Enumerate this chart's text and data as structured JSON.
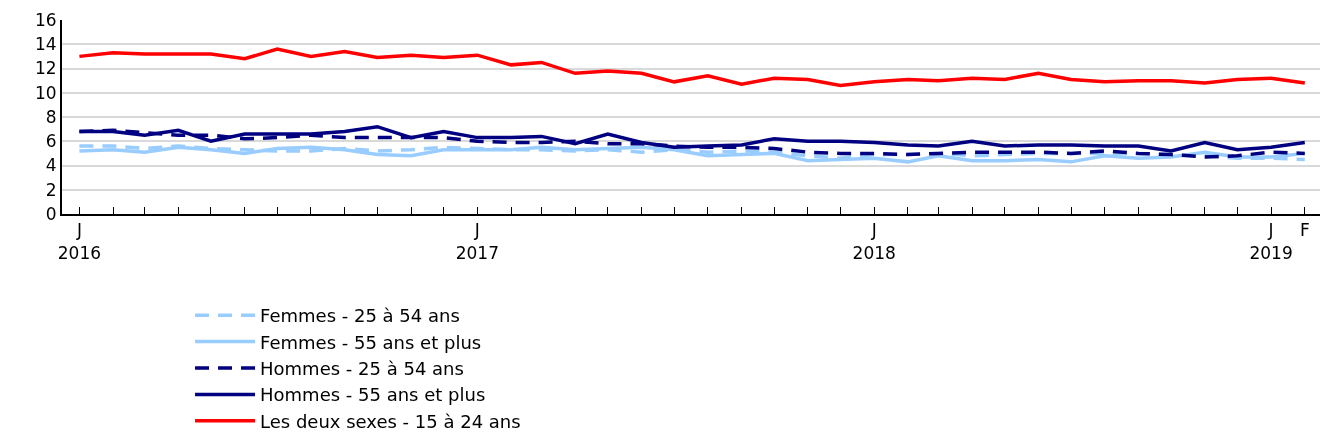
{
  "chart_data": {
    "type": "line",
    "x": [
      "2016-01",
      "2016-02",
      "2016-03",
      "2016-04",
      "2016-05",
      "2016-06",
      "2016-07",
      "2016-08",
      "2016-09",
      "2016-10",
      "2016-11",
      "2016-12",
      "2017-01",
      "2017-02",
      "2017-03",
      "2017-04",
      "2017-05",
      "2017-06",
      "2017-07",
      "2017-08",
      "2017-09",
      "2017-10",
      "2017-11",
      "2017-12",
      "2018-01",
      "2018-02",
      "2018-03",
      "2018-04",
      "2018-05",
      "2018-06",
      "2018-07",
      "2018-08",
      "2018-09",
      "2018-10",
      "2018-11",
      "2018-12",
      "2019-01",
      "2019-02"
    ],
    "series": [
      {
        "name": "Femmes - 25 à 54 ans",
        "color": "#99ccff",
        "line_style": "dashed",
        "values": [
          5.6,
          5.6,
          5.4,
          5.6,
          5.4,
          5.3,
          5.2,
          5.2,
          5.4,
          5.2,
          5.3,
          5.5,
          5.4,
          5.3,
          5.3,
          5.2,
          5.3,
          5.1,
          5.3,
          5.1,
          5.2,
          5.1,
          4.8,
          4.6,
          4.9,
          4.9,
          5.0,
          4.8,
          4.9,
          5.0,
          5.0,
          5.0,
          5.0,
          4.9,
          4.8,
          4.6,
          4.6,
          4.5
        ]
      },
      {
        "name": "Femmes - 55 ans et plus",
        "color": "#99ccff",
        "line_style": "solid",
        "values": [
          5.2,
          5.3,
          5.1,
          5.5,
          5.3,
          5.0,
          5.4,
          5.5,
          5.3,
          4.9,
          4.8,
          5.3,
          5.3,
          5.3,
          5.5,
          5.3,
          5.4,
          5.5,
          5.3,
          4.8,
          4.9,
          5.0,
          4.4,
          4.5,
          4.6,
          4.3,
          4.8,
          4.4,
          4.4,
          4.5,
          4.3,
          4.8,
          4.6,
          4.7,
          5.1,
          4.7,
          4.7,
          5.0
        ]
      },
      {
        "name": "Hommes - 25 à 54 ans",
        "color": "#000080",
        "line_style": "dashed",
        "values": [
          6.8,
          6.9,
          6.7,
          6.5,
          6.5,
          6.2,
          6.3,
          6.5,
          6.3,
          6.3,
          6.3,
          6.3,
          6.0,
          5.9,
          5.9,
          6.0,
          5.8,
          5.8,
          5.6,
          5.5,
          5.5,
          5.4,
          5.1,
          5.0,
          5.0,
          4.9,
          5.0,
          5.1,
          5.1,
          5.1,
          5.0,
          5.2,
          5.0,
          4.9,
          4.7,
          4.8,
          5.1,
          5.0
        ]
      },
      {
        "name": "Hommes - 55 ans et plus",
        "color": "#000080",
        "line_style": "solid",
        "values": [
          6.8,
          6.8,
          6.5,
          6.9,
          6.0,
          6.6,
          6.6,
          6.6,
          6.8,
          7.2,
          6.3,
          6.8,
          6.3,
          6.3,
          6.4,
          5.8,
          6.6,
          5.9,
          5.5,
          5.6,
          5.7,
          6.2,
          6.0,
          6.0,
          5.9,
          5.7,
          5.6,
          6.0,
          5.6,
          5.7,
          5.7,
          5.6,
          5.6,
          5.2,
          5.9,
          5.3,
          5.5,
          5.9
        ]
      },
      {
        "name": "Les deux sexes - 15 à 24 ans",
        "color": "#ff0000",
        "line_style": "solid",
        "values": [
          13.0,
          13.3,
          13.2,
          13.2,
          13.2,
          12.8,
          13.6,
          13.0,
          13.4,
          12.9,
          13.1,
          12.9,
          13.1,
          12.3,
          12.5,
          11.6,
          11.8,
          11.6,
          10.9,
          11.4,
          10.7,
          11.2,
          11.1,
          10.6,
          10.9,
          11.1,
          11.0,
          11.2,
          11.1,
          11.6,
          11.1,
          10.9,
          11.0,
          11.0,
          10.8,
          11.1,
          11.2,
          10.8
        ]
      }
    ],
    "xlim": [
      "2015-12-16",
      "2019-02-15"
    ],
    "xticks": [
      {
        "value": "2016-01",
        "label": "J\n2016"
      },
      {
        "value": "2017-01",
        "label": "J\n2017"
      },
      {
        "value": "2018-01",
        "label": "J\n2018"
      },
      {
        "value": "2019-01",
        "label": "J\n2019"
      },
      {
        "value": "2019-02",
        "label": "F"
      }
    ],
    "ylim": [
      0,
      16
    ],
    "yticks": [
      0,
      2,
      4,
      6,
      8,
      10,
      12,
      14,
      16
    ],
    "grid": "y",
    "legend": "bottom",
    "marker": "none"
  }
}
